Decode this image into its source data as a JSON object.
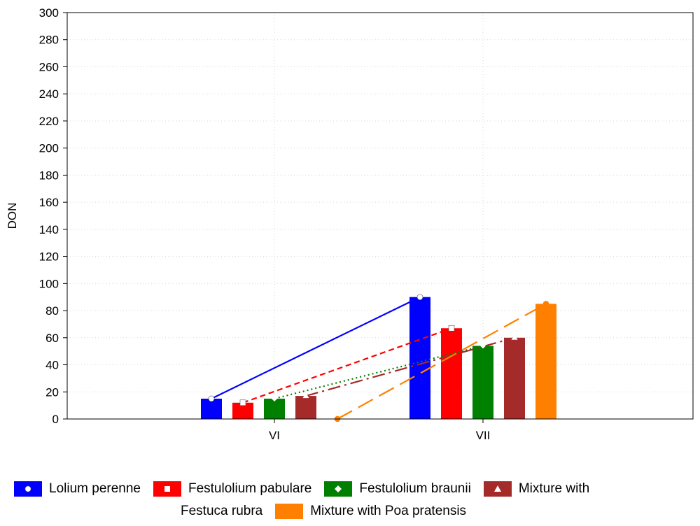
{
  "chart_data": {
    "type": "bar",
    "title": "",
    "xlabel": "",
    "ylabel": "DON",
    "ylim": [
      0,
      300
    ],
    "yticks": [
      0,
      20,
      40,
      60,
      80,
      100,
      120,
      140,
      160,
      180,
      200,
      220,
      240,
      260,
      280,
      300
    ],
    "categories": [
      "VI",
      "VII"
    ],
    "grid": true,
    "legend_position": "bottom",
    "series": [
      {
        "name": "Lolium perenne",
        "values": [
          15,
          90
        ],
        "color": "#0000ff",
        "marker": "circle",
        "line_style": "solid"
      },
      {
        "name": "Festulolium pabulare",
        "values": [
          12,
          67
        ],
        "color": "#ff0000",
        "marker": "square",
        "line_style": "dashed"
      },
      {
        "name": "Festulolium braunii",
        "values": [
          15,
          54
        ],
        "color": "#008000",
        "marker": "diamond",
        "line_style": "dotted"
      },
      {
        "name": "Mixture with Festuca rubra",
        "values": [
          17,
          60
        ],
        "color": "#a52a2a",
        "marker": "triangle",
        "line_style": "dashdot"
      },
      {
        "name": "Mixture with Poa pratensis",
        "values": [
          0,
          85
        ],
        "color": "#ff8000",
        "marker": "circle",
        "line_style": "longdash"
      }
    ]
  },
  "legend": {
    "row1": [
      {
        "label": "Lolium perenne",
        "color": "#0000ff",
        "icon": "circle-marker-icon"
      },
      {
        "label": "Festulolium pabulare",
        "color": "#ff0000",
        "icon": "square-marker-icon"
      },
      {
        "label": "Festulolium braunii",
        "color": "#008000",
        "icon": "diamond-marker-icon"
      },
      {
        "label": "Mixture with",
        "color": "#a52a2a",
        "icon": "triangle-marker-icon"
      }
    ],
    "row2": [
      {
        "label": "Festuca rubra"
      },
      {
        "label": "Mixture with Poa pratensis",
        "color": "#ff8000"
      }
    ]
  }
}
